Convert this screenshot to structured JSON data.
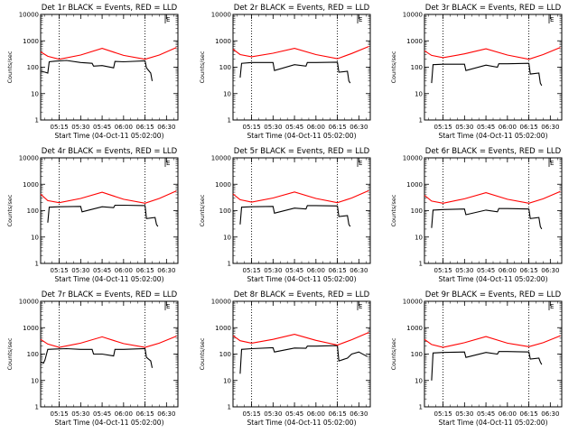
{
  "window": {
    "title": ""
  },
  "chart_data": [
    {
      "type": "line",
      "title": "Det 1r BLACK = Events, RED = LLD",
      "xlabel": "Start Time (04-Oct-11 05:02:00)",
      "ylabel": "Counts/sec",
      "xticks": [
        "05:15",
        "05:30",
        "05:45",
        "06:00",
        "06:15",
        "06:30"
      ],
      "yticks": [
        "1",
        "10",
        "100",
        "1000",
        "10000"
      ],
      "ylim": [
        1,
        10000
      ],
      "yscale": "log",
      "top_right_marker": "E",
      "series": [
        {
          "name": "Events",
          "color": "#000000",
          "x": [
            "05:02",
            "05:05",
            "05:07",
            "05:08",
            "05:12",
            "05:20",
            "05:30",
            "05:38",
            "05:39",
            "05:45",
            "05:53",
            "05:54",
            "06:00",
            "06:15",
            "06:16",
            "06:19",
            "06:20"
          ],
          "y": [
            70,
            65,
            60,
            160,
            170,
            180,
            150,
            140,
            110,
            115,
            95,
            165,
            160,
            175,
            95,
            60,
            30
          ]
        },
        {
          "name": "LLD",
          "color": "#ff0000",
          "x": [
            "05:02",
            "05:07",
            "05:15",
            "05:30",
            "05:45",
            "06:00",
            "06:15",
            "06:25",
            "06:37"
          ],
          "y": [
            380,
            260,
            200,
            290,
            520,
            280,
            200,
            290,
            560
          ]
        }
      ]
    },
    {
      "type": "line",
      "title": "Det 2r BLACK = Events, RED = LLD",
      "xlabel": "Start Time (04-Oct-11 05:02:00)",
      "ylabel": "Counts/sec",
      "xticks": [
        "05:15",
        "05:30",
        "05:45",
        "06:00",
        "06:15",
        "06:30"
      ],
      "yticks": [
        "1",
        "10",
        "100",
        "1000",
        "10000"
      ],
      "ylim": [
        1,
        10000
      ],
      "yscale": "log",
      "top_right_marker": "E",
      "series": [
        {
          "name": "Events",
          "color": "#000000",
          "x": [
            "05:07",
            "05:08",
            "05:15",
            "05:30",
            "05:31",
            "05:45",
            "05:53",
            "05:54",
            "06:00",
            "06:15",
            "06:16",
            "06:22",
            "06:23",
            "06:24"
          ],
          "y": [
            40,
            140,
            150,
            150,
            75,
            125,
            110,
            150,
            150,
            155,
            65,
            70,
            30,
            25
          ]
        },
        {
          "name": "LLD",
          "color": "#ff0000",
          "x": [
            "05:02",
            "05:07",
            "05:15",
            "05:30",
            "05:45",
            "06:00",
            "06:15",
            "06:25",
            "06:37"
          ],
          "y": [
            480,
            300,
            250,
            340,
            520,
            300,
            210,
            330,
            610
          ]
        }
      ]
    },
    {
      "type": "line",
      "title": "Det 3r BLACK = Events, RED = LLD",
      "xlabel": "Start Time (04-Oct-11 05:02:00)",
      "ylabel": "Counts/sec",
      "xticks": [
        "05:15",
        "05:30",
        "05:45",
        "06:00",
        "06:15",
        "06:30"
      ],
      "yticks": [
        "1",
        "10",
        "100",
        "1000",
        "10000"
      ],
      "ylim": [
        1,
        10000
      ],
      "yscale": "log",
      "top_right_marker": "E",
      "series": [
        {
          "name": "Events",
          "color": "#000000",
          "x": [
            "05:07",
            "05:08",
            "05:15",
            "05:30",
            "05:31",
            "05:45",
            "05:53",
            "05:54",
            "06:00",
            "06:15",
            "06:16",
            "06:22",
            "06:23",
            "06:24"
          ],
          "y": [
            25,
            125,
            130,
            130,
            75,
            120,
            100,
            135,
            135,
            140,
            55,
            60,
            25,
            20
          ]
        },
        {
          "name": "LLD",
          "color": "#ff0000",
          "x": [
            "05:02",
            "05:07",
            "05:15",
            "05:30",
            "05:45",
            "06:00",
            "06:15",
            "06:25",
            "06:37"
          ],
          "y": [
            420,
            280,
            230,
            320,
            500,
            290,
            200,
            300,
            560
          ]
        }
      ]
    },
    {
      "type": "line",
      "title": "Det 4r BLACK = Events, RED = LLD",
      "xlabel": "Start Time (04-Oct-11 05:02:00)",
      "ylabel": "Counts/sec",
      "xticks": [
        "05:15",
        "05:30",
        "05:45",
        "06:00",
        "06:15",
        "06:30"
      ],
      "yticks": [
        "1",
        "10",
        "100",
        "1000",
        "10000"
      ],
      "ylim": [
        1,
        10000
      ],
      "yscale": "log",
      "top_right_marker": "E",
      "series": [
        {
          "name": "Events",
          "color": "#000000",
          "x": [
            "05:07",
            "05:08",
            "05:15",
            "05:30",
            "05:31",
            "05:45",
            "05:53",
            "05:54",
            "06:00",
            "06:15",
            "06:16",
            "06:22",
            "06:23",
            "06:24"
          ],
          "y": [
            35,
            135,
            140,
            145,
            90,
            140,
            130,
            160,
            160,
            155,
            50,
            55,
            30,
            25
          ]
        },
        {
          "name": "LLD",
          "color": "#ff0000",
          "x": [
            "05:02",
            "05:07",
            "05:15",
            "05:30",
            "05:45",
            "06:00",
            "06:15",
            "06:25",
            "06:37"
          ],
          "y": [
            420,
            240,
            200,
            290,
            500,
            270,
            190,
            290,
            560
          ]
        }
      ]
    },
    {
      "type": "line",
      "title": "Det 5r BLACK = Events, RED = LLD",
      "xlabel": "Start Time (04-Oct-11 05:02:00)",
      "ylabel": "Counts/sec",
      "xticks": [
        "05:15",
        "05:30",
        "05:45",
        "06:00",
        "06:15",
        "06:30"
      ],
      "yticks": [
        "1",
        "10",
        "100",
        "1000",
        "10000"
      ],
      "ylim": [
        1,
        10000
      ],
      "yscale": "log",
      "top_right_marker": "E",
      "series": [
        {
          "name": "Events",
          "color": "#000000",
          "x": [
            "05:07",
            "05:08",
            "05:15",
            "05:30",
            "05:31",
            "05:45",
            "05:53",
            "05:54",
            "06:00",
            "06:15",
            "06:16",
            "06:22",
            "06:23",
            "06:24"
          ],
          "y": [
            30,
            135,
            140,
            145,
            80,
            125,
            115,
            155,
            155,
            150,
            60,
            65,
            30,
            25
          ]
        },
        {
          "name": "LLD",
          "color": "#ff0000",
          "x": [
            "05:02",
            "05:07",
            "05:15",
            "05:30",
            "05:45",
            "06:00",
            "06:15",
            "06:25",
            "06:37"
          ],
          "y": [
            430,
            260,
            210,
            300,
            510,
            290,
            200,
            300,
            580
          ]
        }
      ]
    },
    {
      "type": "line",
      "title": "Det 6r BLACK = Events, RED = LLD",
      "xlabel": "Start Time (04-Oct-11 05:02:00)",
      "ylabel": "Counts/sec",
      "xticks": [
        "05:15",
        "05:30",
        "05:45",
        "06:00",
        "06:15",
        "06:30"
      ],
      "yticks": [
        "1",
        "10",
        "100",
        "1000",
        "10000"
      ],
      "ylim": [
        1,
        10000
      ],
      "yscale": "log",
      "top_right_marker": "E",
      "series": [
        {
          "name": "Events",
          "color": "#000000",
          "x": [
            "05:07",
            "05:08",
            "05:15",
            "05:30",
            "05:31",
            "05:45",
            "05:53",
            "05:54",
            "06:00",
            "06:15",
            "06:16",
            "06:22",
            "06:23",
            "06:24"
          ],
          "y": [
            22,
            105,
            110,
            115,
            70,
            105,
            90,
            120,
            120,
            115,
            50,
            55,
            25,
            20
          ]
        },
        {
          "name": "LLD",
          "color": "#ff0000",
          "x": [
            "05:02",
            "05:07",
            "05:15",
            "05:30",
            "05:45",
            "06:00",
            "06:15",
            "06:25",
            "06:37"
          ],
          "y": [
            380,
            230,
            190,
            280,
            480,
            270,
            190,
            280,
            530
          ]
        }
      ]
    },
    {
      "type": "line",
      "title": "Det 7r BLACK = Events, RED = LLD",
      "xlabel": "Start Time (04-Oct-11 05:02:00)",
      "ylabel": "Counts/sec",
      "xticks": [
        "05:15",
        "05:30",
        "05:45",
        "06:00",
        "06:15",
        "06:30"
      ],
      "yticks": [
        "1",
        "10",
        "100",
        "1000",
        "10000"
      ],
      "ylim": [
        1,
        10000
      ],
      "yscale": "log",
      "top_right_marker": "E",
      "series": [
        {
          "name": "Events",
          "color": "#000000",
          "x": [
            "05:02",
            "05:04",
            "05:05",
            "05:07",
            "05:12",
            "05:20",
            "05:30",
            "05:38",
            "05:39",
            "05:45",
            "05:53",
            "05:54",
            "06:00",
            "06:15",
            "06:16",
            "06:19",
            "06:20"
          ],
          "y": [
            50,
            45,
            60,
            150,
            155,
            160,
            150,
            150,
            100,
            100,
            85,
            150,
            150,
            160,
            75,
            55,
            30
          ]
        },
        {
          "name": "LLD",
          "color": "#ff0000",
          "x": [
            "05:02",
            "05:07",
            "05:15",
            "05:30",
            "05:45",
            "06:00",
            "06:15",
            "06:25",
            "06:37"
          ],
          "y": [
            360,
            240,
            180,
            260,
            450,
            250,
            180,
            260,
            480
          ]
        }
      ]
    },
    {
      "type": "line",
      "title": "Det 8r BLACK = Events, RED = LLD",
      "xlabel": "Start Time (04-Oct-11 05:02:00)",
      "ylabel": "Counts/sec",
      "xticks": [
        "05:15",
        "05:30",
        "05:45",
        "06:00",
        "06:15",
        "06:30"
      ],
      "yticks": [
        "1",
        "10",
        "100",
        "1000",
        "10000"
      ],
      "ylim": [
        1,
        10000
      ],
      "yscale": "log",
      "top_right_marker": "E",
      "series": [
        {
          "name": "Events",
          "color": "#000000",
          "x": [
            "05:07",
            "05:08",
            "05:15",
            "05:30",
            "05:31",
            "05:45",
            "05:53",
            "05:54",
            "06:00",
            "06:15",
            "06:16",
            "06:22",
            "06:25",
            "06:30",
            "06:36"
          ],
          "y": [
            18,
            150,
            160,
            175,
            120,
            170,
            165,
            200,
            200,
            210,
            55,
            70,
            100,
            120,
            80
          ]
        },
        {
          "name": "LLD",
          "color": "#ff0000",
          "x": [
            "05:02",
            "05:07",
            "05:15",
            "05:30",
            "05:45",
            "06:00",
            "06:15",
            "06:25",
            "06:37"
          ],
          "y": [
            500,
            320,
            260,
            360,
            560,
            330,
            220,
            350,
            660
          ]
        }
      ]
    },
    {
      "type": "line",
      "title": "Det 9r BLACK = Events, RED = LLD",
      "xlabel": "Start Time (04-Oct-11 05:02:00)",
      "ylabel": "Counts/sec",
      "xticks": [
        "05:15",
        "05:30",
        "05:45",
        "06:00",
        "06:15",
        "06:30"
      ],
      "yticks": [
        "1",
        "10",
        "100",
        "1000",
        "10000"
      ],
      "ylim": [
        1,
        10000
      ],
      "yscale": "log",
      "top_right_marker": "E",
      "series": [
        {
          "name": "Events",
          "color": "#000000",
          "x": [
            "05:07",
            "05:08",
            "05:15",
            "05:30",
            "05:31",
            "05:45",
            "05:53",
            "05:54",
            "06:00",
            "06:15",
            "06:16",
            "06:22",
            "06:23",
            "06:24"
          ],
          "y": [
            10,
            110,
            115,
            120,
            75,
            115,
            100,
            125,
            125,
            120,
            65,
            70,
            50,
            40
          ]
        },
        {
          "name": "LLD",
          "color": "#ff0000",
          "x": [
            "05:02",
            "05:07",
            "05:15",
            "05:30",
            "05:45",
            "06:00",
            "06:15",
            "06:25",
            "06:37"
          ],
          "y": [
            360,
            230,
            180,
            270,
            460,
            260,
            190,
            270,
            490
          ]
        }
      ]
    }
  ]
}
